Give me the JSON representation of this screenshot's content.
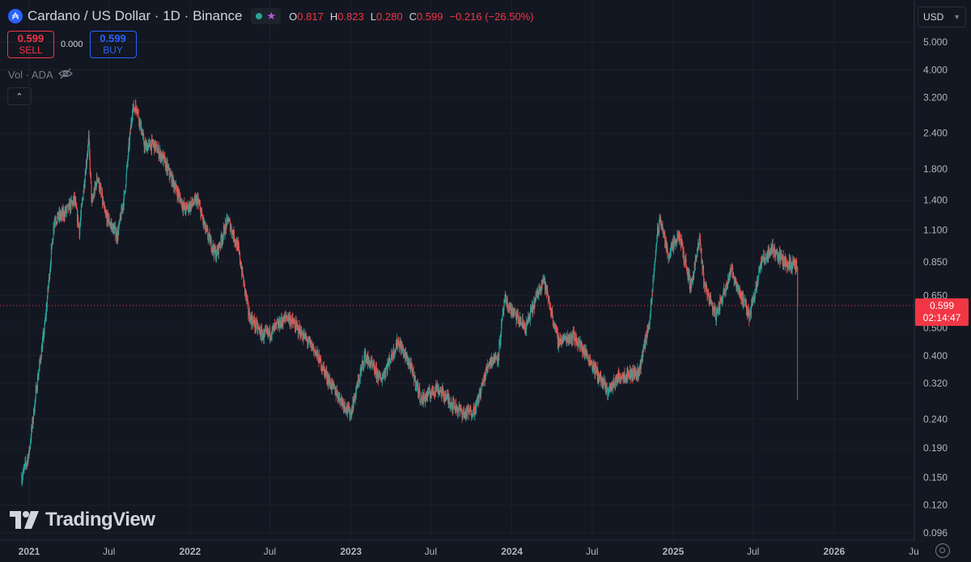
{
  "header": {
    "coin_glyph": "₳",
    "symbol_title": "Cardano / US Dollar · 1D · Binance",
    "ohlc": {
      "o_label": "O",
      "o_value": "0.817",
      "h_label": "H",
      "h_value": "0.823",
      "l_label": "L",
      "l_value": "0.280",
      "c_label": "C",
      "c_value": "0.599",
      "change": "−0.216 (−26.50%)"
    },
    "status_color": "#26a69a"
  },
  "trade": {
    "sell_price": "0.599",
    "sell_label": "SELL",
    "spread": "0.000",
    "buy_price": "0.599",
    "buy_label": "BUY"
  },
  "volume": {
    "label": "Vol · ADA"
  },
  "currency": {
    "label": "USD"
  },
  "last_price": {
    "price": "0.599",
    "countdown": "02:14:47"
  },
  "logo": {
    "text": "TradingView"
  },
  "colors": {
    "up": "#26a69a",
    "down": "#ef5350",
    "background": "#131722",
    "last_price": "#f23645"
  },
  "chart_data": {
    "type": "candlestick",
    "scale": "log",
    "y_ticks": [
      "0.096",
      "0.120",
      "0.150",
      "0.190",
      "0.240",
      "0.320",
      "0.400",
      "0.500",
      "0.650",
      "0.850",
      "1.100",
      "1.400",
      "1.800",
      "2.400",
      "3.200",
      "4.000",
      "5.000"
    ],
    "x_ticks": [
      {
        "label": "2021",
        "date": "2021-01-01"
      },
      {
        "label": "Jul",
        "date": "2021-07-01"
      },
      {
        "label": "2022",
        "date": "2022-01-01"
      },
      {
        "label": "Jul",
        "date": "2022-07-01"
      },
      {
        "label": "2023",
        "date": "2023-01-01"
      },
      {
        "label": "Jul",
        "date": "2023-07-01"
      },
      {
        "label": "2024",
        "date": "2024-01-01"
      },
      {
        "label": "Jul",
        "date": "2024-07-01"
      },
      {
        "label": "2025",
        "date": "2025-01-01"
      },
      {
        "label": "Jul",
        "date": "2025-07-01"
      },
      {
        "label": "2026",
        "date": "2026-01-01"
      },
      {
        "label": "Ju",
        "date": "2026-07-01"
      }
    ],
    "last_close": 0.599,
    "price_path": [
      [
        "2020-12-15",
        0.15
      ],
      [
        "2020-12-31",
        0.18
      ],
      [
        "2021-01-20",
        0.33
      ],
      [
        "2021-02-05",
        0.5
      ],
      [
        "2021-02-27",
        1.2
      ],
      [
        "2021-03-20",
        1.25
      ],
      [
        "2021-04-14",
        1.4
      ],
      [
        "2021-04-25",
        1.1
      ],
      [
        "2021-05-16",
        2.3
      ],
      [
        "2021-05-23",
        1.35
      ],
      [
        "2021-06-05",
        1.7
      ],
      [
        "2021-06-22",
        1.25
      ],
      [
        "2021-07-20",
        1.05
      ],
      [
        "2021-08-05",
        1.45
      ],
      [
        "2021-08-23",
        2.9
      ],
      [
        "2021-09-02",
        2.98
      ],
      [
        "2021-09-20",
        2.15
      ],
      [
        "2021-10-10",
        2.2
      ],
      [
        "2021-11-01",
        1.95
      ],
      [
        "2021-11-25",
        1.6
      ],
      [
        "2021-12-20",
        1.3
      ],
      [
        "2022-01-18",
        1.4
      ],
      [
        "2022-02-05",
        1.1
      ],
      [
        "2022-03-01",
        0.9
      ],
      [
        "2022-03-28",
        1.2
      ],
      [
        "2022-04-20",
        0.95
      ],
      [
        "2022-05-15",
        0.55
      ],
      [
        "2022-06-15",
        0.47
      ],
      [
        "2022-07-01",
        0.48
      ],
      [
        "2022-08-10",
        0.55
      ],
      [
        "2022-09-10",
        0.48
      ],
      [
        "2022-10-10",
        0.42
      ],
      [
        "2022-11-15",
        0.32
      ],
      [
        "2022-12-31",
        0.25
      ],
      [
        "2023-02-01",
        0.4
      ],
      [
        "2023-03-10",
        0.33
      ],
      [
        "2023-04-18",
        0.45
      ],
      [
        "2023-05-15",
        0.37
      ],
      [
        "2023-06-10",
        0.28
      ],
      [
        "2023-07-15",
        0.31
      ],
      [
        "2023-08-20",
        0.27
      ],
      [
        "2023-09-15",
        0.25
      ],
      [
        "2023-10-10",
        0.26
      ],
      [
        "2023-11-10",
        0.38
      ],
      [
        "2023-12-01",
        0.4
      ],
      [
        "2023-12-15",
        0.62
      ],
      [
        "2024-01-10",
        0.55
      ],
      [
        "2024-02-01",
        0.5
      ],
      [
        "2024-03-12",
        0.75
      ],
      [
        "2024-04-15",
        0.45
      ],
      [
        "2024-05-20",
        0.47
      ],
      [
        "2024-06-20",
        0.4
      ],
      [
        "2024-08-05",
        0.3
      ],
      [
        "2024-09-01",
        0.34
      ],
      [
        "2024-10-15",
        0.35
      ],
      [
        "2024-11-10",
        0.55
      ],
      [
        "2024-11-25",
        1.05
      ],
      [
        "2024-12-03",
        1.2
      ],
      [
        "2024-12-20",
        0.9
      ],
      [
        "2025-01-15",
        1.05
      ],
      [
        "2025-02-10",
        0.7
      ],
      [
        "2025-03-02",
        1.02
      ],
      [
        "2025-03-12",
        0.72
      ],
      [
        "2025-04-08",
        0.55
      ],
      [
        "2025-05-12",
        0.8
      ],
      [
        "2025-06-22",
        0.55
      ],
      [
        "2025-07-20",
        0.85
      ],
      [
        "2025-08-14",
        0.95
      ],
      [
        "2025-09-10",
        0.85
      ],
      [
        "2025-10-09",
        0.82
      ]
    ],
    "final_candle": {
      "date": "2025-10-10",
      "open": 0.817,
      "high": 0.823,
      "low": 0.28,
      "close": 0.599
    }
  }
}
